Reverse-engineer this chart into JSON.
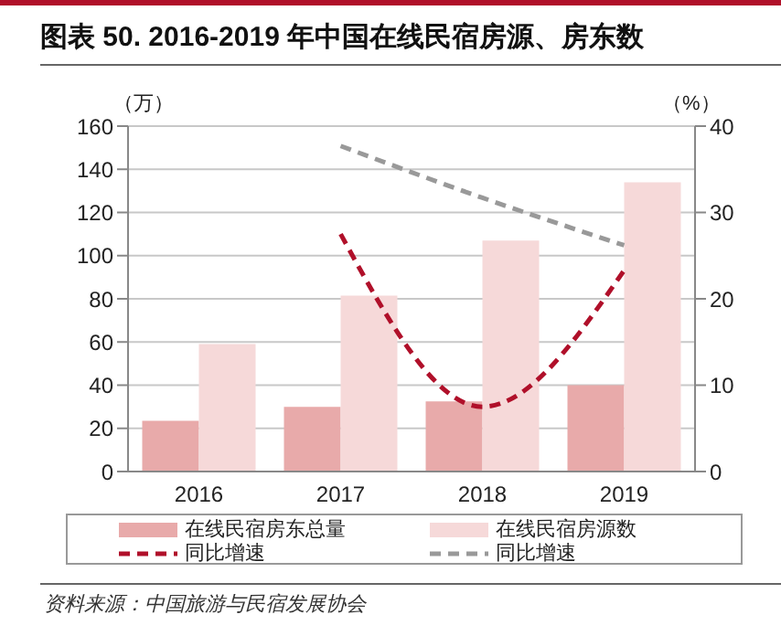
{
  "chart_data": {
    "type": "bar",
    "title": "图表 50. 2016-2019 年中国在线民宿房源、房东数",
    "ylabel": "（万）",
    "y2label": "（%）",
    "categories": [
      "2016",
      "2017",
      "2018",
      "2019"
    ],
    "series": [
      {
        "name": "在线民宿房东总量",
        "color": "#e8aaaa",
        "values": [
          23.5,
          30,
          32.5,
          40
        ]
      },
      {
        "name": "在线民宿房源数",
        "color": "#f6d9d9",
        "values": [
          59,
          81.5,
          107,
          134
        ]
      },
      {
        "name": "同比增速",
        "type": "line",
        "axis": "y2",
        "color": "#b0102a",
        "line_style": "dashed",
        "values": [
          null,
          27.5,
          7.5,
          23.3
        ]
      },
      {
        "name": "同比增速",
        "type": "line",
        "axis": "y2",
        "color": "#999999",
        "line_style": "dashed",
        "values": [
          null,
          37.7,
          31.7,
          26.2
        ]
      }
    ],
    "ylim": [
      0,
      160
    ],
    "yticks": [
      0,
      20,
      40,
      60,
      80,
      100,
      120,
      140,
      160
    ],
    "y2lim": [
      0,
      40
    ],
    "y2ticks": [
      0,
      10,
      20,
      30,
      40
    ],
    "grid": "y",
    "legend": "bottom",
    "marker": "none",
    "annotations": [
      "资料来源：中国旅游与民宿发展协会"
    ]
  }
}
